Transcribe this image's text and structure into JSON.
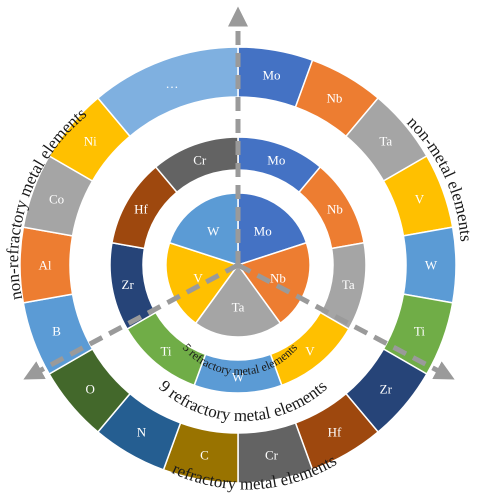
{
  "rings": {
    "center": {
      "label": "5 refractory metal elements",
      "segments": [
        {
          "text": "Mo",
          "color": "#4472c4"
        },
        {
          "text": "Nb",
          "color": "#ed7d31"
        },
        {
          "text": "Ta",
          "color": "#a5a5a5"
        },
        {
          "text": "V",
          "color": "#ffc000"
        },
        {
          "text": "W",
          "color": "#5b9bd5"
        }
      ]
    },
    "middle": {
      "label": "9 refractory metal elements",
      "segments": [
        {
          "text": "Mo",
          "color": "#4472c4"
        },
        {
          "text": "Nb",
          "color": "#ed7d31"
        },
        {
          "text": "Ta",
          "color": "#a5a5a5"
        },
        {
          "text": "V",
          "color": "#ffc000"
        },
        {
          "text": "W",
          "color": "#5b9bd5"
        },
        {
          "text": "Ti",
          "color": "#70ad47"
        },
        {
          "text": "Zr",
          "color": "#264478"
        },
        {
          "text": "Hf",
          "color": "#9e480e"
        },
        {
          "text": "Cr",
          "color": "#636363"
        }
      ]
    },
    "outer": {
      "label_bottom": "refractory metal elements",
      "label_right": "non-metal elements",
      "label_left": "non-refractory metal elements",
      "segments": [
        {
          "text": "Mo",
          "color": "#4472c4"
        },
        {
          "text": "Nb",
          "color": "#ed7d31"
        },
        {
          "text": "Ta",
          "color": "#a5a5a5"
        },
        {
          "text": "V",
          "color": "#ffc000"
        },
        {
          "text": "W",
          "color": "#5b9bd5"
        },
        {
          "text": "Ti",
          "color": "#70ad47"
        },
        {
          "text": "Zr",
          "color": "#264478"
        },
        {
          "text": "Hf",
          "color": "#9e480e"
        },
        {
          "text": "Cr",
          "color": "#636363"
        },
        {
          "text": "C",
          "color": "#997300"
        },
        {
          "text": "N",
          "color": "#255e91"
        },
        {
          "text": "O",
          "color": "#43682b"
        },
        {
          "text": "B",
          "color": "#5b9bd5"
        },
        {
          "text": "Al",
          "color": "#ed7d31"
        },
        {
          "text": "Co",
          "color": "#a5a5a5"
        },
        {
          "text": "Ni",
          "color": "#ffc000"
        },
        {
          "text": "…",
          "color": "#7fb0e0"
        }
      ]
    }
  }
}
